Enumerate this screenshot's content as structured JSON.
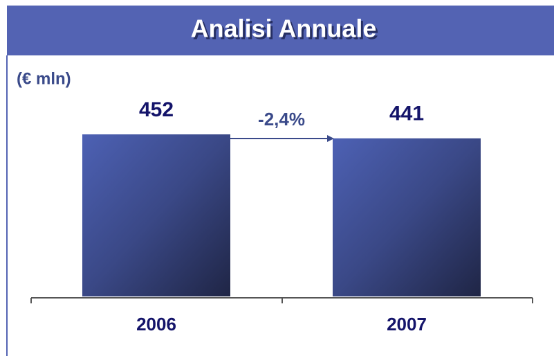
{
  "chart_data": {
    "type": "bar",
    "title": "Analisi Annuale",
    "subtitle": "(€ mln)",
    "categories": [
      "2006",
      "2007"
    ],
    "values": [
      452,
      441
    ],
    "annotation": "-2,4%",
    "color": "#4a5cae"
  }
}
